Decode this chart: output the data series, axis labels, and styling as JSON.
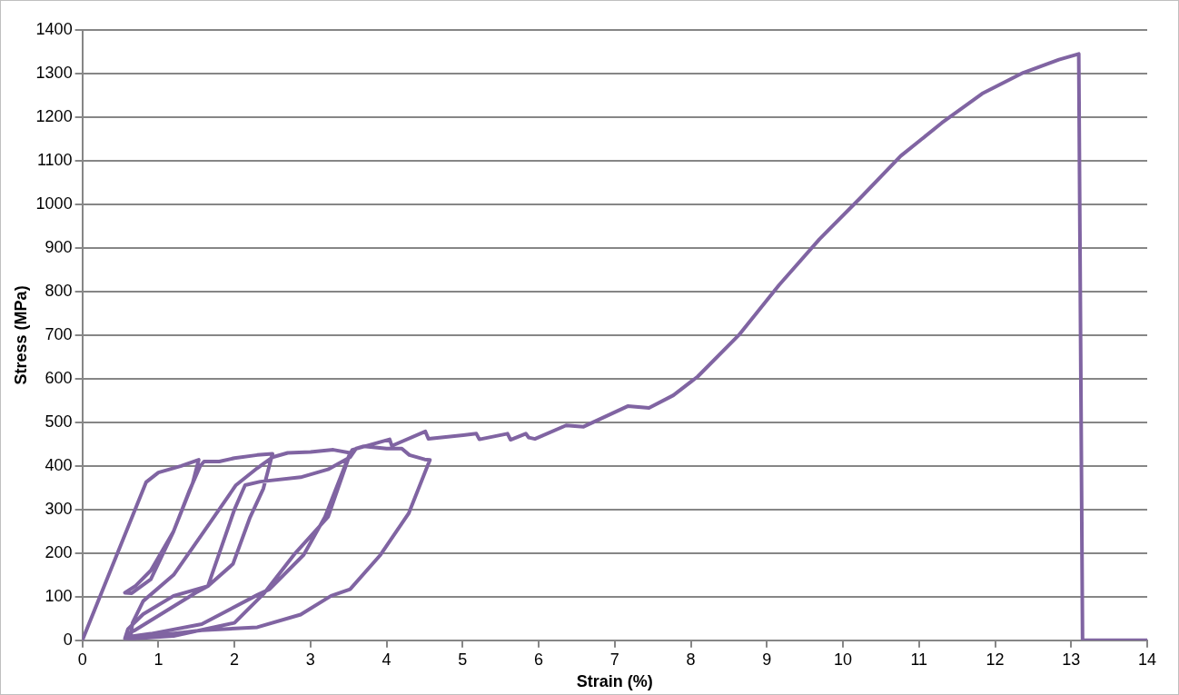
{
  "chart_data": {
    "type": "line",
    "xlabel": "Strain (%)",
    "ylabel": "Stress (MPa)",
    "xlim": [
      0,
      14
    ],
    "xticks": [
      0,
      1,
      2,
      3,
      4,
      5,
      6,
      7,
      8,
      9,
      10,
      11,
      12,
      13,
      14
    ],
    "ylim": [
      0,
      1400
    ],
    "yticks": [
      0,
      100,
      200,
      300,
      400,
      500,
      600,
      700,
      800,
      900,
      1000,
      1100,
      1200,
      1300,
      1400
    ],
    "grid": "y",
    "legend": false,
    "marker": "none",
    "line_style": "solid",
    "series": [
      {
        "color": "#8064a2",
        "x": [
          0,
          0.84,
          1.0,
          1.3,
          1.53,
          1.45,
          1.2,
          0.9,
          0.7,
          0.56,
          0.65,
          0.9,
          1.2,
          1.4,
          1.55,
          1.6,
          1.8,
          2.0,
          2.3,
          2.5,
          2.38,
          2.2,
          1.98,
          1.65,
          1.2,
          0.8,
          0.6,
          0.56,
          0.64,
          0.66,
          0.8,
          1.2,
          1.6,
          2.02,
          2.3,
          2.5,
          2.7,
          3.0,
          3.3,
          3.52,
          3.19,
          2.91,
          2.46,
          2.3,
          1.57,
          0.9,
          0.6,
          0.58,
          0.68,
          1.49,
          1.65,
          2.0,
          2.14,
          2.34,
          2.87,
          3.23,
          3.52,
          3.6,
          3.7,
          4.0,
          4.2,
          4.3,
          4.5,
          4.57,
          4.29,
          3.92,
          3.52,
          3.27,
          2.87,
          2.3,
          1.57,
          0.6,
          1.2,
          2.0,
          2.38,
          2.8,
          3.23,
          3.52,
          3.55,
          4.04,
          4.07,
          4.51,
          4.55,
          5.18,
          5.22,
          5.59,
          5.63,
          5.83,
          5.87,
          5.95,
          6.36,
          6.59,
          7.17,
          7.45,
          7.77,
          8.09,
          8.63,
          9.16,
          9.69,
          10.23,
          10.76,
          11.3,
          11.83,
          12.37,
          12.84,
          13.1,
          13.15,
          14
        ],
        "values": [
          0,
          363,
          385,
          400,
          414,
          360,
          250,
          160,
          125,
          109,
          108,
          140,
          250,
          340,
          400,
          410,
          410,
          418,
          425,
          428,
          348,
          280,
          175,
          124,
          102,
          60,
          26,
          4,
          14,
          40,
          90,
          150,
          250,
          356,
          395,
          420,
          430,
          432,
          437,
          430,
          283,
          196,
          117,
          104,
          37,
          15,
          8,
          14,
          22,
          109,
          124,
          300,
          356,
          364,
          374,
          392,
          420,
          440,
          445,
          440,
          440,
          425,
          415,
          414,
          291,
          196,
          117,
          102,
          59,
          30,
          23,
          3,
          10,
          40,
          106,
          200,
          283,
          428,
          437,
          461,
          446,
          479,
          462,
          474,
          461,
          474,
          460,
          474,
          465,
          462,
          493,
          490,
          537,
          533,
          562,
          605,
          700,
          815,
          920,
          1015,
          1111,
          1187,
          1254,
          1302,
          1332,
          1345,
          0,
          0
        ]
      }
    ]
  }
}
